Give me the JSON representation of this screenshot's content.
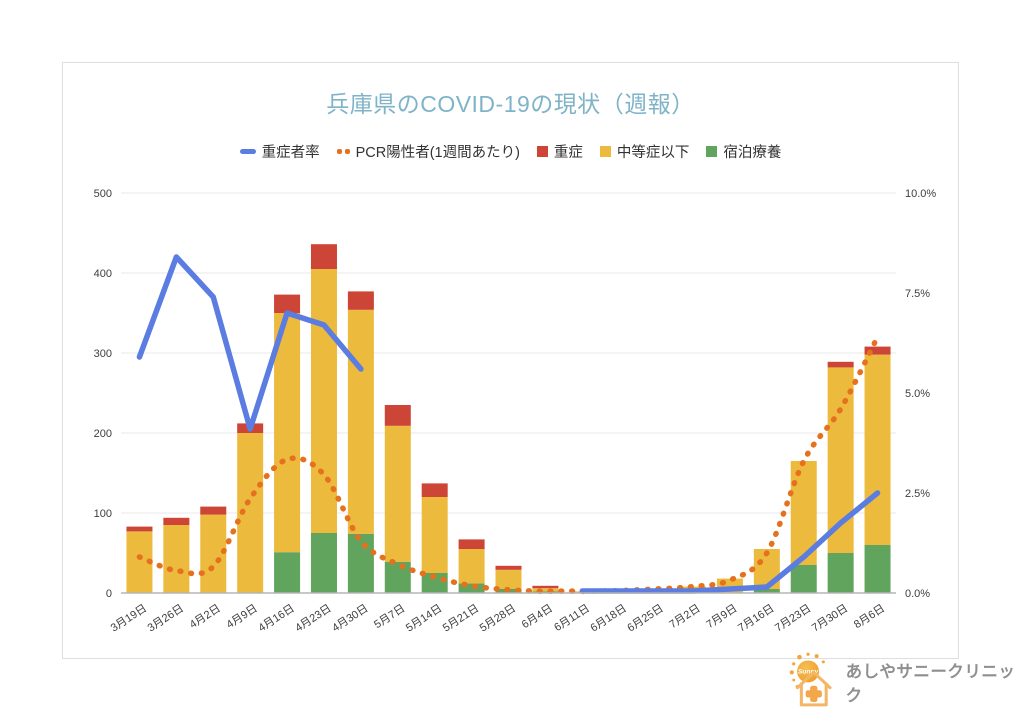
{
  "title": "兵庫県のCOVID-19の現状（週報）",
  "title_color": "#7fb3c8",
  "legend": [
    {
      "label": "重症者率",
      "type": "line",
      "color": "#5b7ce0"
    },
    {
      "label": "PCR陽性者(1週間あたり)",
      "type": "dotted",
      "color": "#e5711e"
    },
    {
      "label": "重症",
      "type": "square",
      "color": "#cc4537"
    },
    {
      "label": "中等症以下",
      "type": "square",
      "color": "#ecba3d"
    },
    {
      "label": "宿泊療養",
      "type": "square",
      "color": "#61a45e"
    }
  ],
  "chart_data": {
    "type": "bar",
    "subtype": "stacked bars + line (right %) + dotted line (left count)",
    "categories": [
      "3月19日",
      "3月26日",
      "4月2日",
      "4月9日",
      "4月16日",
      "4月23日",
      "4月30日",
      "5月7日",
      "5月14日",
      "5月21日",
      "5月28日",
      "6月4日",
      "6月11日",
      "6月18日",
      "6月25日",
      "7月2日",
      "7月9日",
      "7月16日",
      "7月23日",
      "7月30日",
      "8月6日"
    ],
    "series": [
      {
        "name": "宿泊療養",
        "type": "bar-stack",
        "axis": "left",
        "color": "#61a45e",
        "values": [
          0,
          0,
          0,
          0,
          51,
          75,
          74,
          39,
          25,
          12,
          5,
          2,
          0,
          0,
          0,
          0,
          0,
          5,
          35,
          50,
          60
        ]
      },
      {
        "name": "中等症以下",
        "type": "bar-stack",
        "axis": "left",
        "color": "#ecba3d",
        "values": [
          77,
          85,
          98,
          200,
          299,
          330,
          280,
          170,
          95,
          43,
          24,
          4,
          2,
          3,
          5,
          8,
          18,
          50,
          130,
          232,
          238
        ]
      },
      {
        "name": "重症",
        "type": "bar-stack",
        "axis": "left",
        "color": "#cc4537",
        "values": [
          6,
          9,
          10,
          12,
          23,
          31,
          23,
          26,
          17,
          12,
          5,
          3,
          0,
          0,
          0,
          0,
          0,
          0,
          0,
          7,
          10
        ]
      },
      {
        "name": "PCR陽性者(1週間あたり)",
        "type": "dotted-line",
        "axis": "left",
        "color": "#e5711e",
        "values": [
          45,
          28,
          33,
          118,
          167,
          148,
          65,
          36,
          20,
          9,
          4,
          2,
          2,
          3,
          5,
          8,
          16,
          50,
          165,
          230,
          320
        ]
      },
      {
        "name": "重症者率",
        "type": "line",
        "axis": "right",
        "unit": "%",
        "color": "#5b7ce0",
        "values": [
          5.9,
          8.4,
          7.4,
          4.1,
          7.0,
          6.7,
          5.6,
          null,
          null,
          null,
          null,
          null,
          0.05,
          0.05,
          0.05,
          0.05,
          0.1,
          0.15,
          0.9,
          1.75,
          2.5
        ]
      }
    ],
    "left_axis": {
      "min": 0,
      "max": 500,
      "ticks": [
        0,
        100,
        200,
        300,
        400,
        500
      ]
    },
    "right_axis": {
      "min": 0,
      "max": 10,
      "ticks": [
        "0.0%",
        "2.5%",
        "5.0%",
        "7.5%",
        "10.0%"
      ],
      "tick_values": [
        0,
        2.5,
        5,
        7.5,
        10
      ]
    },
    "grid": true,
    "legend_position": "top"
  },
  "footer_logo": {
    "sun_text": "Sunny",
    "clinic_name": "あしやサニークリニック"
  },
  "colors": {
    "grid": "#e9e9e9",
    "axis_line": "#b5b5b5",
    "axis_text": "#3d3d3d",
    "card_border": "#dedede",
    "logo_orange": "#f2a53c",
    "logo_light_orange": "#f3b666",
    "logo_text": "#8f8f8f"
  }
}
